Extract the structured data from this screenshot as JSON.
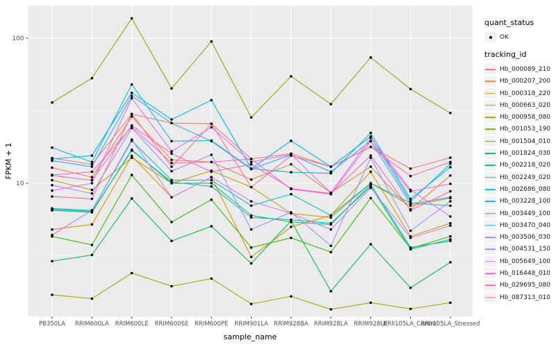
{
  "figure": {
    "xlabel": "sample_name",
    "ylabel": "FPKM + 1"
  },
  "legend": {
    "quant_title": "quant_status",
    "quant_items": [
      "OK"
    ],
    "tracking_title": "tracking_id"
  },
  "chart_data": {
    "type": "line",
    "title": "",
    "xlabel": "sample_name",
    "ylabel": "FPKM + 1",
    "y_scale": "log10",
    "y_tick_values": [
      10,
      100
    ],
    "y_minor_gridlines": [
      3.162,
      31.62
    ],
    "ylim": [
      1.2,
      170
    ],
    "grid": "on",
    "legend_position": "right",
    "panel_color": "#EBEBEB",
    "gridline_color": "#FFFFFF",
    "point_color": "#000000",
    "quant_status_all_points": "OK",
    "categories": [
      "PB350LA",
      "RRIM600LA",
      "RRIM600LE",
      "RRIM600SE",
      "RRIM600PE",
      "RRIM901LA",
      "RRIM928BA",
      "RRIM928LA",
      "RRIM928LE",
      "RRII105LA_Control",
      "RRII105LA_Stressed"
    ],
    "series": [
      {
        "name": "Hb_000089_210",
        "color": "#F8766D",
        "values": [
          14.9,
          13.5,
          30.0,
          26.0,
          25.7,
          14.7,
          16.0,
          13.0,
          17.8,
          12.6,
          15.0
        ]
      },
      {
        "name": "Hb_000207_200",
        "color": "#EA8331",
        "values": [
          12.8,
          11.0,
          28.8,
          14.5,
          14.0,
          10.6,
          13.5,
          8.6,
          13.0,
          6.6,
          11.3
        ]
      },
      {
        "name": "Hb_000318_220",
        "color": "#D89000",
        "values": [
          4.8,
          5.2,
          15.4,
          8.0,
          11.0,
          3.1,
          5.0,
          6.0,
          12.0,
          4.3,
          5.3
        ]
      },
      {
        "name": "Hb_000663_020",
        "color": "#C09B00",
        "values": [
          10.5,
          9.0,
          15.0,
          10.0,
          12.2,
          9.4,
          6.2,
          5.8,
          10.0,
          7.0,
          7.9
        ]
      },
      {
        "name": "Hb_000958_080",
        "color": "#A3A500",
        "values": [
          1.7,
          1.6,
          2.4,
          1.95,
          2.2,
          1.47,
          1.66,
          1.35,
          1.5,
          1.36,
          1.5
        ]
      },
      {
        "name": "Hb_001053_190",
        "color": "#7CAE00",
        "values": [
          36.0,
          53.0,
          137.0,
          45.0,
          95.0,
          28.4,
          54.6,
          35.1,
          73.6,
          44.6,
          30.5
        ]
      },
      {
        "name": "Hb_001504_010",
        "color": "#39B600",
        "values": [
          4.3,
          3.75,
          11.4,
          5.4,
          7.7,
          3.6,
          4.2,
          3.35,
          7.9,
          3.55,
          4.3
        ]
      },
      {
        "name": "Hb_001824_030",
        "color": "#00BB4E",
        "values": [
          2.9,
          3.2,
          7.85,
          4.0,
          5.05,
          2.8,
          5.5,
          1.8,
          3.8,
          1.9,
          2.85
        ]
      },
      {
        "name": "Hb_002218_020",
        "color": "#00BF7D",
        "values": [
          6.5,
          6.3,
          17.0,
          10.0,
          10.0,
          6.0,
          5.4,
          5.2,
          9.8,
          3.6,
          4.0
        ]
      },
      {
        "name": "Hb_002249_020",
        "color": "#00C1A3",
        "values": [
          6.6,
          6.4,
          16.8,
          10.2,
          9.5,
          5.8,
          5.6,
          5.3,
          9.5,
          3.5,
          4.1
        ]
      },
      {
        "name": "Hb_002686_080",
        "color": "#00BFC4",
        "values": [
          6.7,
          6.5,
          19.6,
          10.5,
          10.5,
          7.0,
          8.4,
          6.0,
          10.0,
          7.3,
          7.0
        ]
      },
      {
        "name": "Hb_003228_100",
        "color": "#00BAE0",
        "values": [
          17.6,
          14.0,
          48.0,
          19.5,
          19.7,
          12.6,
          11.9,
          11.7,
          22.2,
          7.8,
          12.9
        ]
      },
      {
        "name": "Hb_003449_100",
        "color": "#00B0F6",
        "values": [
          14.7,
          15.5,
          42.0,
          27.5,
          37.4,
          12.6,
          19.6,
          13.0,
          21.0,
          7.5,
          13.6
        ]
      },
      {
        "name": "Hb_003470_040",
        "color": "#35A2FF",
        "values": [
          14.3,
          13.0,
          40.0,
          26.0,
          19.5,
          12.5,
          15.7,
          12.0,
          19.5,
          7.2,
          8.0
        ]
      },
      {
        "name": "Hb_003506_030",
        "color": "#9590FF",
        "values": [
          9.7,
          8.5,
          24.0,
          12.1,
          15.7,
          4.8,
          6.3,
          3.7,
          15.0,
          4.7,
          7.5
        ]
      },
      {
        "name": "Hb_004531_150",
        "color": "#C77CFF",
        "values": [
          4.4,
          6.5,
          20.0,
          8.0,
          11.0,
          7.5,
          6.2,
          4.8,
          9.3,
          4.2,
          5.1
        ]
      },
      {
        "name": "Hb_005649_100",
        "color": "#E76BF3",
        "values": [
          8.9,
          10.0,
          38.5,
          16.6,
          24.3,
          14.0,
          15.8,
          8.6,
          20.5,
          9.0,
          5.9
        ]
      },
      {
        "name": "Hb_016448_010",
        "color": "#FA62DB",
        "values": [
          11.4,
          12.0,
          24.5,
          13.8,
          14.0,
          14.7,
          9.1,
          8.4,
          19.5,
          8.8,
          9.9
        ]
      },
      {
        "name": "Hb_029695_080",
        "color": "#FF62BC",
        "values": [
          11.3,
          10.5,
          25.0,
          16.0,
          12.0,
          13.5,
          9.2,
          8.5,
          15.5,
          6.5,
          8.8
        ]
      },
      {
        "name": "Hb_087313_010",
        "color": "#FF6A98",
        "values": [
          8.1,
          7.8,
          30.0,
          13.0,
          25.7,
          9.4,
          15.5,
          13.0,
          17.8,
          11.2,
          14.0
        ]
      }
    ]
  }
}
